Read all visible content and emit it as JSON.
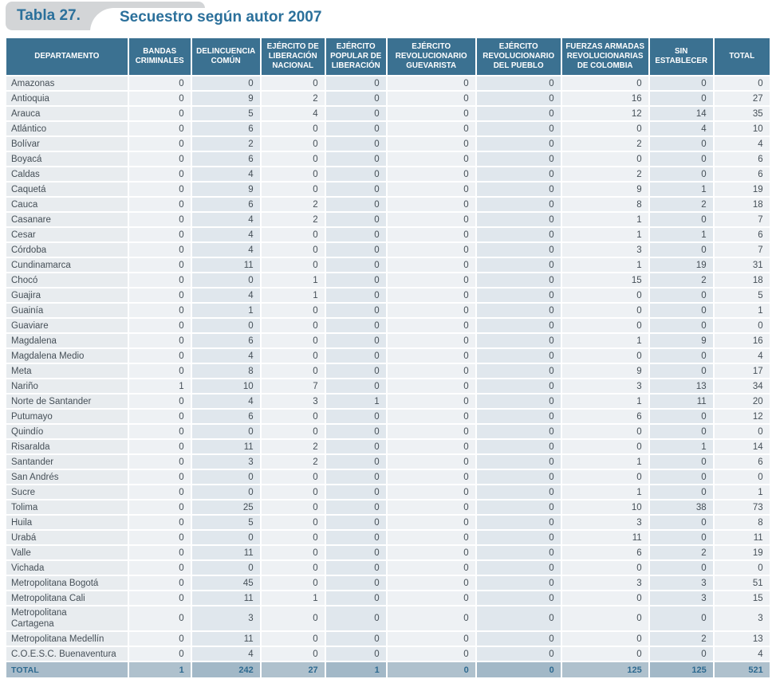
{
  "caption": {
    "number": "Tabla 27.",
    "title": "Secuestro según autor 2007"
  },
  "colors": {
    "title_text": "#2b709b",
    "caption_pill": "#d3d5d7",
    "header_bg": "#3b7191",
    "header_text": "#ffffff",
    "column_light": "#eef1f4",
    "column_dark": "#e0e7ed",
    "department_column": "#e8ecef",
    "total_row_light": "#afc1cd",
    "total_row_dark": "#a2b8c7",
    "total_row_label": "#a9bcca",
    "total_text": "#2e6a90",
    "body_text": "#454f57"
  },
  "chart_data": {
    "type": "table",
    "title": "Secuestro según autor 2007",
    "columns": [
      "DEPARTAMENTO",
      "BANDAS CRIMINALES",
      "DELINCUENCIA COMÚN",
      "EJÉRCITO DE LIBERACIÓN NACIONAL",
      "EJÉRCITO POPULAR DE LIBERACIÓN",
      "EJÉRCITO REVOLUCIONARIO GUEVARISTA",
      "EJÉRCITO REVOLUCIONARIO DEL PUEBLO",
      "FUERZAS ARMADAS REVOLUCIONARIAS DE COLOMBIA",
      "SIN ESTABLECER",
      "TOTAL"
    ],
    "rows": [
      {
        "name": "Amazonas",
        "values": [
          0,
          0,
          0,
          0,
          0,
          0,
          0,
          0,
          0
        ]
      },
      {
        "name": "Antioquia",
        "values": [
          0,
          9,
          2,
          0,
          0,
          0,
          16,
          0,
          27
        ]
      },
      {
        "name": "Arauca",
        "values": [
          0,
          5,
          4,
          0,
          0,
          0,
          12,
          14,
          35
        ]
      },
      {
        "name": "Atlántico",
        "values": [
          0,
          6,
          0,
          0,
          0,
          0,
          0,
          4,
          10
        ]
      },
      {
        "name": "Bolívar",
        "values": [
          0,
          2,
          0,
          0,
          0,
          0,
          2,
          0,
          4
        ]
      },
      {
        "name": "Boyacá",
        "values": [
          0,
          6,
          0,
          0,
          0,
          0,
          0,
          0,
          6
        ]
      },
      {
        "name": "Caldas",
        "values": [
          0,
          4,
          0,
          0,
          0,
          0,
          2,
          0,
          6
        ]
      },
      {
        "name": "Caquetá",
        "values": [
          0,
          9,
          0,
          0,
          0,
          0,
          9,
          1,
          19
        ]
      },
      {
        "name": "Cauca",
        "values": [
          0,
          6,
          2,
          0,
          0,
          0,
          8,
          2,
          18
        ]
      },
      {
        "name": "Casanare",
        "values": [
          0,
          4,
          2,
          0,
          0,
          0,
          1,
          0,
          7
        ]
      },
      {
        "name": "Cesar",
        "values": [
          0,
          4,
          0,
          0,
          0,
          0,
          1,
          1,
          6
        ]
      },
      {
        "name": "Córdoba",
        "values": [
          0,
          4,
          0,
          0,
          0,
          0,
          3,
          0,
          7
        ]
      },
      {
        "name": "Cundinamarca",
        "values": [
          0,
          11,
          0,
          0,
          0,
          0,
          1,
          19,
          31
        ]
      },
      {
        "name": "Chocó",
        "values": [
          0,
          0,
          1,
          0,
          0,
          0,
          15,
          2,
          18
        ]
      },
      {
        "name": "Guajira",
        "values": [
          0,
          4,
          1,
          0,
          0,
          0,
          0,
          0,
          5
        ]
      },
      {
        "name": "Guainía",
        "values": [
          0,
          1,
          0,
          0,
          0,
          0,
          0,
          0,
          1
        ]
      },
      {
        "name": "Guaviare",
        "values": [
          0,
          0,
          0,
          0,
          0,
          0,
          0,
          0,
          0
        ]
      },
      {
        "name": "Magdalena",
        "values": [
          0,
          6,
          0,
          0,
          0,
          0,
          1,
          9,
          16
        ]
      },
      {
        "name": "Magdalena Medio",
        "values": [
          0,
          4,
          0,
          0,
          0,
          0,
          0,
          0,
          4
        ]
      },
      {
        "name": "Meta",
        "values": [
          0,
          8,
          0,
          0,
          0,
          0,
          9,
          0,
          17
        ]
      },
      {
        "name": "Nariño",
        "values": [
          1,
          10,
          7,
          0,
          0,
          0,
          3,
          13,
          34
        ]
      },
      {
        "name": "Norte de Santander",
        "values": [
          0,
          4,
          3,
          1,
          0,
          0,
          1,
          11,
          20
        ]
      },
      {
        "name": "Putumayo",
        "values": [
          0,
          6,
          0,
          0,
          0,
          0,
          6,
          0,
          12
        ]
      },
      {
        "name": "Quindío",
        "values": [
          0,
          0,
          0,
          0,
          0,
          0,
          0,
          0,
          0
        ]
      },
      {
        "name": "Risaralda",
        "values": [
          0,
          11,
          2,
          0,
          0,
          0,
          0,
          1,
          14
        ]
      },
      {
        "name": "Santander",
        "values": [
          0,
          3,
          2,
          0,
          0,
          0,
          1,
          0,
          6
        ]
      },
      {
        "name": "San Andrés",
        "values": [
          0,
          0,
          0,
          0,
          0,
          0,
          0,
          0,
          0
        ]
      },
      {
        "name": "Sucre",
        "values": [
          0,
          0,
          0,
          0,
          0,
          0,
          1,
          0,
          1
        ]
      },
      {
        "name": "Tolima",
        "values": [
          0,
          25,
          0,
          0,
          0,
          0,
          10,
          38,
          73
        ]
      },
      {
        "name": "Huila",
        "values": [
          0,
          5,
          0,
          0,
          0,
          0,
          3,
          0,
          8
        ]
      },
      {
        "name": "Urabá",
        "values": [
          0,
          0,
          0,
          0,
          0,
          0,
          11,
          0,
          11
        ]
      },
      {
        "name": "Valle",
        "values": [
          0,
          11,
          0,
          0,
          0,
          0,
          6,
          2,
          19
        ]
      },
      {
        "name": "Vichada",
        "values": [
          0,
          0,
          0,
          0,
          0,
          0,
          0,
          0,
          0
        ]
      },
      {
        "name": "Metropolitana Bogotá",
        "values": [
          0,
          45,
          0,
          0,
          0,
          0,
          3,
          3,
          51
        ]
      },
      {
        "name": "Metropolitana Cali",
        "values": [
          0,
          11,
          1,
          0,
          0,
          0,
          0,
          3,
          15
        ]
      },
      {
        "name": "Metropolitana Cartagena",
        "values": [
          0,
          3,
          0,
          0,
          0,
          0,
          0,
          0,
          3
        ]
      },
      {
        "name": "Metropolitana Medellín",
        "values": [
          0,
          11,
          0,
          0,
          0,
          0,
          0,
          2,
          13
        ]
      },
      {
        "name": "C.O.E.S.C. Buenaventura",
        "values": [
          0,
          4,
          0,
          0,
          0,
          0,
          0,
          0,
          4
        ]
      }
    ],
    "total_row": {
      "name": "TOTAL",
      "values": [
        1,
        242,
        27,
        1,
        0,
        0,
        125,
        125,
        521
      ]
    }
  }
}
